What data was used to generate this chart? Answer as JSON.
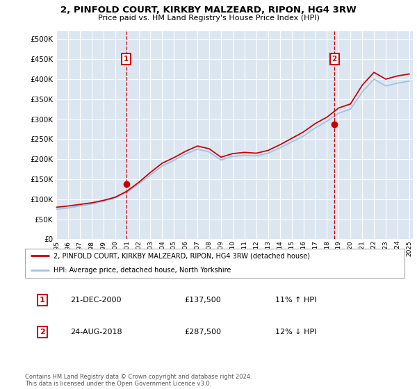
{
  "title": "2, PINFOLD COURT, KIRKBY MALZEARD, RIPON, HG4 3RW",
  "subtitle": "Price paid vs. HM Land Registry's House Price Index (HPI)",
  "legend_line1": "2, PINFOLD COURT, KIRKBY MALZEARD, RIPON, HG4 3RW (detached house)",
  "legend_line2": "HPI: Average price, detached house, North Yorkshire",
  "footnote": "Contains HM Land Registry data © Crown copyright and database right 2024.\nThis data is licensed under the Open Government Licence v3.0.",
  "annotation1_date": "21-DEC-2000",
  "annotation1_price": "£137,500",
  "annotation1_hpi": "11% ↑ HPI",
  "annotation2_date": "24-AUG-2018",
  "annotation2_price": "£287,500",
  "annotation2_hpi": "12% ↓ HPI",
  "ylim": [
    0,
    520000
  ],
  "yticks": [
    0,
    50000,
    100000,
    150000,
    200000,
    250000,
    300000,
    350000,
    400000,
    450000,
    500000
  ],
  "ytick_labels": [
    "£0",
    "£50K",
    "£100K",
    "£150K",
    "£200K",
    "£250K",
    "£300K",
    "£350K",
    "£400K",
    "£450K",
    "£500K"
  ],
  "bg_color": "#dce6f1",
  "grid_color": "#ffffff",
  "red_line_color": "#cc0000",
  "blue_line_color": "#9dc3e6",
  "vline_color": "#cc0000",
  "annotation_box_color": "#cc0000",
  "years": [
    1995,
    1996,
    1997,
    1998,
    1999,
    2000,
    2001,
    2002,
    2003,
    2004,
    2005,
    2006,
    2007,
    2008,
    2009,
    2010,
    2011,
    2012,
    2013,
    2014,
    2015,
    2016,
    2017,
    2018,
    2019,
    2020,
    2021,
    2022,
    2023,
    2024,
    2025
  ],
  "hpi_values": [
    75000,
    78000,
    83000,
    88000,
    95000,
    103000,
    117000,
    138000,
    161000,
    183000,
    197000,
    213000,
    225000,
    218000,
    198000,
    207000,
    210000,
    208000,
    215000,
    228000,
    243000,
    258000,
    278000,
    295000,
    315000,
    325000,
    368000,
    400000,
    383000,
    390000,
    395000
  ],
  "price_values": [
    80000,
    83000,
    87000,
    91000,
    97000,
    105000,
    120000,
    142000,
    167000,
    190000,
    204000,
    220000,
    233000,
    226000,
    205000,
    214000,
    217000,
    215000,
    222000,
    236000,
    252000,
    268000,
    289000,
    305000,
    328000,
    338000,
    385000,
    417000,
    400000,
    408000,
    413000
  ],
  "sale1_x": 2000.96,
  "sale1_y": 137500,
  "sale2_x": 2018.64,
  "sale2_y": 287500,
  "xlim_start": 1995,
  "xlim_end": 2025.3
}
